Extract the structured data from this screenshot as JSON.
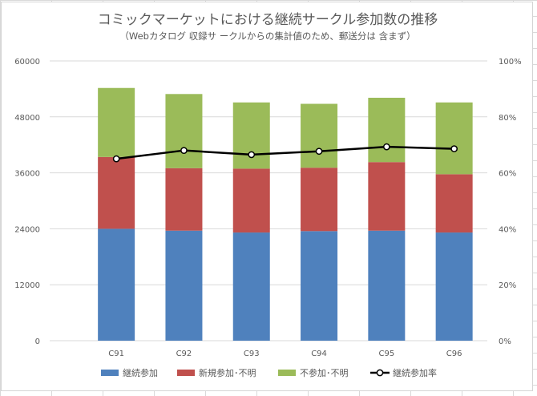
{
  "chart_data": {
    "type": "bar",
    "stacked": true,
    "title": "コミックマーケットにおける継続サークル参加数の推移",
    "subtitle": "（Webカタログ 収録サ ークルからの集計値のため、郵送分は 含まず）",
    "categories": [
      "C91",
      "C92",
      "C93",
      "C94",
      "C95",
      "C96"
    ],
    "series": [
      {
        "name": "継続参加",
        "type": "bar",
        "color": "#4f81bd",
        "values": [
          24000,
          23600,
          23200,
          23500,
          23600,
          23200
        ]
      },
      {
        "name": "新規参加･不明",
        "type": "bar",
        "color": "#c0504d",
        "values": [
          15400,
          13400,
          13700,
          13600,
          14700,
          12500
        ]
      },
      {
        "name": "不参加･不明",
        "type": "bar",
        "color": "#9bbb59",
        "values": [
          14800,
          15900,
          14200,
          13700,
          13800,
          15400
        ]
      },
      {
        "name": "継続参加率",
        "type": "line",
        "axis": "right",
        "color": "#000000",
        "values": [
          0.65,
          0.68,
          0.665,
          0.677,
          0.693,
          0.686
        ]
      }
    ],
    "y_left": {
      "min": 0,
      "max": 60000,
      "ticks": [
        "0",
        "12000",
        "24000",
        "36000",
        "48000",
        "60000"
      ]
    },
    "y_right": {
      "min": 0,
      "max": 1,
      "ticks": [
        "0%",
        "20%",
        "40%",
        "60%",
        "80%",
        "100%"
      ]
    },
    "gridlines": true,
    "legend_position": "bottom"
  }
}
